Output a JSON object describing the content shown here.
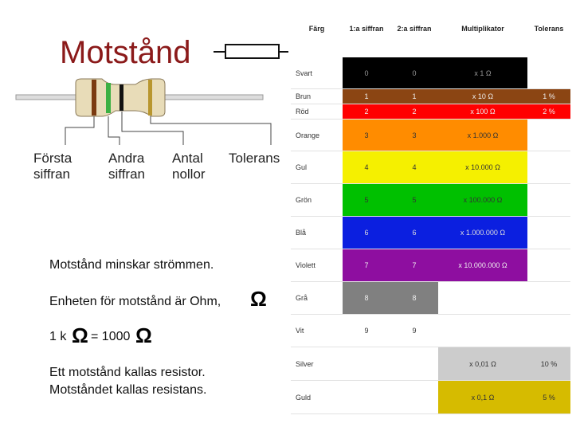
{
  "title": "Motstånd",
  "labels": {
    "first": "Första siffran",
    "second": "Andra siffran",
    "zeros": "Antal nollor",
    "tolerance": "Tolerans"
  },
  "notes": {
    "line1": "Motstånd minskar strömmen.",
    "line2": "Enheten för motstånd är Ohm,",
    "ohm": "Ω",
    "line3a": "1 k",
    "line3b": "= 1000",
    "line4": "Ett motstånd kallas resistor.",
    "line5": "Motståndet kallas resistans."
  },
  "table": {
    "header": [
      "Färg",
      "1:a siffran",
      "2:a siffran",
      "Multiplikator",
      "Tolerans"
    ],
    "rows": [
      {
        "name": "Svart",
        "fill": "#000000",
        "text_color": "#999999",
        "digit1": "0",
        "digit2": "0",
        "mult": "x 1 Ω"
      },
      {
        "name": "Brun",
        "fill": "#8b4513",
        "text_color": "#eeeeee",
        "digit1": "1",
        "digit2": "1",
        "mult": "x 10 Ω",
        "tol": "1 %"
      },
      {
        "name": "Röd",
        "fill": "#ff0000",
        "text_color": "#eeeeee",
        "digit1": "2",
        "digit2": "2",
        "mult": "x 100 Ω",
        "tol": "2 %"
      },
      {
        "name": "Orange",
        "fill": "#ff8c00",
        "text_color": "#333333",
        "digit1": "3",
        "digit2": "3",
        "mult": "x 1.000 Ω"
      },
      {
        "name": "Gul",
        "fill": "#f5f000",
        "text_color": "#333333",
        "digit1": "4",
        "digit2": "4",
        "mult": "x 10.000 Ω"
      },
      {
        "name": "Grön",
        "fill": "#00c000",
        "text_color": "#333333",
        "digit1": "5",
        "digit2": "5",
        "mult": "x 100.000 Ω"
      },
      {
        "name": "Blå",
        "fill": "#0b1fe0",
        "text_color": "#dddddd",
        "digit1": "6",
        "digit2": "6",
        "mult": "x 1.000.000 Ω"
      },
      {
        "name": "Violett",
        "fill": "#8e0ea0",
        "text_color": "#eeeeee",
        "digit1": "7",
        "digit2": "7",
        "mult": "x 10.000.000 Ω"
      },
      {
        "name": "Grå",
        "fill": "#808080",
        "text_color": "#eeeeee",
        "digit1": "8",
        "digit2": "8"
      },
      {
        "name": "Vit",
        "fill": "#ffffff",
        "text_color": "#333333",
        "digit1": "9",
        "digit2": "9"
      },
      {
        "name": "Silver",
        "fill": "#cccccc",
        "text_color": "#333333",
        "mult": "x 0,01 Ω",
        "tol": "10 %"
      },
      {
        "name": "Guld",
        "fill": "#d6bb00",
        "text_color": "#333333",
        "mult": "x 0,1 Ω",
        "tol": "5 %"
      }
    ]
  }
}
